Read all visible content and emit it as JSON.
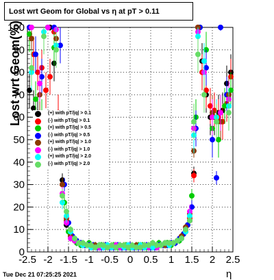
{
  "title": "Lost wrt Geom for Global vs   η at pT > 0.11",
  "timestamp": "Tue Dec 21 07:25:25 2021",
  "chart_data": {
    "type": "scatter",
    "xlabel": "η",
    "ylabel": "Lost wrt Geom(%)",
    "xlim": [
      -2.5,
      2.5
    ],
    "ylim": [
      0,
      100
    ],
    "x_ticks": [
      "-2.5",
      "-2",
      "-1.5",
      "-1",
      "-0.5",
      "0",
      "0.5",
      "1",
      "1.5",
      "2",
      "2.5"
    ],
    "y_ticks": [
      "0",
      "10",
      "20",
      "30",
      "40",
      "50",
      "60",
      "70",
      "80",
      "90",
      "100"
    ],
    "grid": true,
    "legend_position": "left",
    "series": [
      {
        "name": "(+) with pT/|q| > 0.1",
        "color": "#000000",
        "x": [
          -2.45,
          -2.35,
          -2.25,
          -2.15,
          -2.05,
          -1.95,
          -1.85,
          -1.75,
          -1.65,
          -1.55,
          -1.45,
          -1.35,
          -1.25,
          -1.15,
          -1.05,
          -0.95,
          -0.85,
          -0.75,
          -0.65,
          -0.55,
          -0.45,
          -0.35,
          -0.25,
          -0.15,
          -0.05,
          0.05,
          0.15,
          0.25,
          0.35,
          0.45,
          0.55,
          0.65,
          0.75,
          0.85,
          0.95,
          1.05,
          1.15,
          1.25,
          1.35,
          1.45,
          1.55,
          1.65,
          1.75,
          1.85,
          1.95,
          2.05,
          2.15,
          2.25,
          2.35,
          2.45
        ],
        "y": [
          72,
          64,
          62,
          60,
          55,
          100,
          84,
          60,
          32,
          12,
          8,
          5,
          4,
          3,
          3,
          2,
          3,
          3,
          2,
          2,
          2,
          3,
          2,
          2,
          2,
          2,
          2,
          3,
          2,
          2,
          3,
          2,
          3,
          3,
          4,
          4,
          5,
          6,
          9,
          14,
          35,
          100,
          85,
          70,
          60,
          60,
          62,
          63,
          75,
          80
        ]
      },
      {
        "name": "(-) with pT/|q| > 0.1",
        "color": "#ff0000",
        "x": [
          -2.45,
          -2.35,
          -2.25,
          -2.15,
          -2.05,
          -1.95,
          -1.85,
          -1.75,
          -1.65,
          -1.55,
          -1.45,
          -1.35,
          -1.25,
          -1.15,
          -1.05,
          -0.95,
          -0.85,
          -0.75,
          -0.65,
          -0.55,
          -0.45,
          -0.35,
          -0.25,
          -0.15,
          -0.05,
          0.05,
          0.15,
          0.25,
          0.35,
          0.45,
          0.55,
          0.65,
          0.75,
          0.85,
          0.95,
          1.05,
          1.15,
          1.25,
          1.35,
          1.45,
          1.55,
          1.65,
          1.75,
          1.85,
          1.95,
          2.05,
          2.15,
          2.25,
          2.35,
          2.45
        ],
        "y": [
          100,
          88,
          80,
          82,
          72,
          78,
          98,
          62,
          30,
          15,
          7,
          5,
          4,
          3,
          3,
          3,
          2,
          2,
          3,
          2,
          2,
          2,
          2,
          3,
          2,
          2,
          3,
          2,
          2,
          2,
          2,
          3,
          3,
          4,
          3,
          4,
          5,
          7,
          10,
          15,
          34,
          100,
          80,
          72,
          65,
          63,
          60,
          58,
          66,
          78
        ]
      },
      {
        "name": "(+) with pT/|q| > 0.5",
        "color": "#00cc00",
        "x": [
          -2.45,
          -2.3,
          -2.15,
          -2.0,
          -1.85,
          -1.7,
          -1.6,
          -1.5,
          -1.4,
          -1.3,
          -1.2,
          -1.1,
          -1.0,
          -0.9,
          -0.8,
          -0.7,
          -0.6,
          -0.5,
          -0.4,
          -0.3,
          -0.2,
          -0.1,
          0.0,
          0.1,
          0.2,
          0.3,
          0.4,
          0.5,
          0.6,
          0.7,
          0.8,
          0.9,
          1.0,
          1.1,
          1.2,
          1.3,
          1.4,
          1.5,
          1.6,
          1.7,
          1.85,
          2.0,
          2.15,
          2.3,
          2.45
        ],
        "y": [
          97,
          68,
          60,
          100,
          91,
          55,
          22,
          9,
          6,
          4,
          3,
          3,
          4,
          3,
          2,
          3,
          3,
          2,
          3,
          2,
          2,
          3,
          2,
          2,
          3,
          3,
          2,
          2,
          3,
          4,
          3,
          4,
          3,
          4,
          5,
          8,
          12,
          25,
          60,
          100,
          90,
          55,
          50,
          65,
          72
        ]
      },
      {
        "name": "(-) with pT/|q| > 0.5",
        "color": "#0000ff",
        "x": [
          -2.45,
          -2.3,
          -2.15,
          -2.0,
          -1.85,
          -1.7,
          -1.6,
          -1.5,
          -1.4,
          -1.3,
          -1.2,
          -1.1,
          -1.0,
          -0.9,
          -0.8,
          -0.7,
          -0.6,
          -0.5,
          -0.4,
          -0.3,
          -0.2,
          -0.1,
          0.0,
          0.1,
          0.2,
          0.3,
          0.4,
          0.5,
          0.6,
          0.7,
          0.8,
          0.9,
          1.0,
          1.1,
          1.2,
          1.3,
          1.4,
          1.5,
          1.6,
          1.7,
          1.85,
          2.0,
          2.1,
          2.2,
          2.35
        ],
        "y": [
          100,
          88,
          78,
          100,
          100,
          92,
          30,
          13,
          7,
          5,
          4,
          3,
          3,
          3,
          2,
          2,
          3,
          2,
          2,
          3,
          2,
          2,
          3,
          2,
          2,
          2,
          3,
          2,
          2,
          3,
          3,
          3,
          4,
          4,
          6,
          8,
          12,
          20,
          55,
          100,
          82,
          50,
          33,
          100,
          70
        ]
      },
      {
        "name": "(+) with pT/|q| > 1.0",
        "color": "#8b3a00",
        "x": [
          -2.4,
          -2.2,
          -2.0,
          -1.8,
          -1.65,
          -1.55,
          -1.45,
          -1.35,
          -1.25,
          -1.15,
          -1.05,
          -0.95,
          -0.85,
          -0.75,
          -0.65,
          -0.55,
          -0.45,
          -0.35,
          -0.25,
          -0.15,
          -0.05,
          0.05,
          0.15,
          0.25,
          0.35,
          0.45,
          0.55,
          0.65,
          0.75,
          0.85,
          0.95,
          1.05,
          1.15,
          1.25,
          1.35,
          1.45,
          1.55,
          1.65,
          1.8,
          2.0,
          2.2,
          2.4
        ],
        "y": [
          95,
          70,
          100,
          95,
          30,
          14,
          7,
          5,
          4,
          3,
          3,
          2,
          3,
          2,
          2,
          3,
          2,
          2,
          3,
          2,
          2,
          2,
          3,
          2,
          2,
          3,
          2,
          3,
          3,
          3,
          4,
          4,
          5,
          7,
          11,
          17,
          45,
          100,
          85,
          62,
          58,
          70
        ]
      },
      {
        "name": "(-) with pT/|q| > 1.0",
        "color": "#ff00ff",
        "x": [
          -2.4,
          -2.2,
          -2.0,
          -1.8,
          -1.65,
          -1.55,
          -1.45,
          -1.35,
          -1.25,
          -1.15,
          -1.05,
          -0.95,
          -0.85,
          -0.75,
          -0.65,
          -0.55,
          -0.45,
          -0.35,
          -0.25,
          -0.15,
          -0.05,
          0.05,
          0.15,
          0.25,
          0.35,
          0.45,
          0.55,
          0.65,
          0.75,
          0.85,
          0.95,
          1.05,
          1.15,
          1.25,
          1.35,
          1.45,
          1.55,
          1.65,
          1.8,
          2.0,
          2.2,
          2.4
        ],
        "y": [
          100,
          75,
          100,
          99,
          26,
          13,
          6,
          5,
          4,
          3,
          3,
          3,
          2,
          2,
          3,
          2,
          2,
          3,
          2,
          2,
          3,
          2,
          2,
          2,
          3,
          2,
          3,
          2,
          3,
          4,
          3,
          4,
          5,
          6,
          10,
          18,
          55,
          98,
          80,
          60,
          62,
          68
        ]
      },
      {
        "name": "(+) with pT/|q| > 2.0",
        "color": "#00ffff",
        "x": [
          -2.4,
          -2.1,
          -1.8,
          -1.65,
          -1.55,
          -1.45,
          -1.35,
          -1.25,
          -1.15,
          -1.05,
          -0.95,
          -0.85,
          -0.75,
          -0.65,
          -0.55,
          -0.45,
          -0.35,
          -0.25,
          -0.15,
          -0.05,
          0.05,
          0.15,
          0.25,
          0.35,
          0.45,
          0.55,
          0.65,
          0.75,
          0.85,
          0.95,
          1.05,
          1.15,
          1.25,
          1.35,
          1.45,
          1.55,
          1.65,
          1.8,
          2.1,
          2.4
        ],
        "y": [
          80,
          98,
          92,
          22,
          16,
          9,
          6,
          4,
          3,
          3,
          2,
          2,
          3,
          2,
          3,
          2,
          2,
          3,
          2,
          3,
          2,
          2,
          3,
          2,
          3,
          2,
          3,
          3,
          4,
          3,
          4,
          5,
          6,
          9,
          16,
          52,
          96,
          85,
          60,
          65
        ]
      },
      {
        "name": "(-) with pT/|q| > 2.0",
        "color": "#66dd66",
        "x": [
          -2.4,
          -2.1,
          -1.8,
          -1.65,
          -1.55,
          -1.45,
          -1.35,
          -1.25,
          -1.15,
          -1.05,
          -0.95,
          -0.85,
          -0.75,
          -0.65,
          -0.55,
          -0.45,
          -0.35,
          -0.25,
          -0.15,
          -0.05,
          0.05,
          0.15,
          0.25,
          0.35,
          0.45,
          0.55,
          0.65,
          0.75,
          0.85,
          0.95,
          1.05,
          1.15,
          1.25,
          1.35,
          1.45,
          1.55,
          1.65,
          1.8,
          2.1,
          2.4
        ],
        "y": [
          82,
          96,
          90,
          25,
          18,
          10,
          6,
          4,
          4,
          3,
          3,
          2,
          3,
          3,
          2,
          3,
          2,
          3,
          3,
          2,
          3,
          2,
          2,
          3,
          3,
          4,
          3,
          3,
          4,
          4,
          4,
          5,
          6,
          10,
          14,
          58,
          88,
          70,
          58,
          62
        ]
      }
    ]
  }
}
